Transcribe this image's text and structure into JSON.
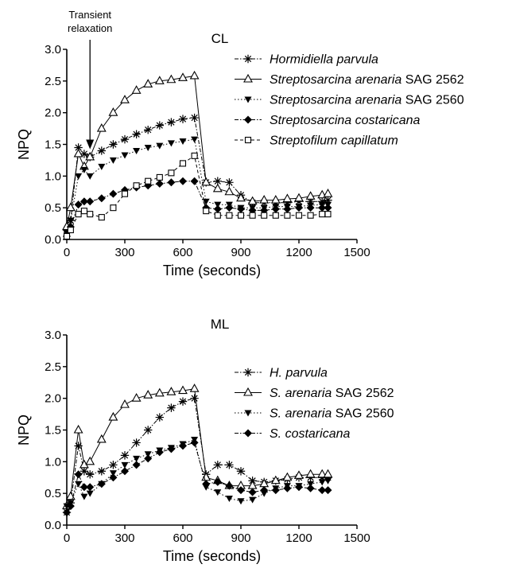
{
  "chart_data": [
    {
      "type": "line",
      "title": "CL",
      "xlabel": "Time (seconds)",
      "ylabel": "NPQ",
      "xlim": [
        0,
        1500
      ],
      "ylim": [
        0,
        3.0
      ],
      "xticks": [
        "0",
        "300",
        "600",
        "900",
        "1200",
        "1500"
      ],
      "yticks": [
        "0.0",
        "0.5",
        "1.0",
        "1.5",
        "2.0",
        "2.5",
        "3.0"
      ],
      "annotation": {
        "text": [
          "Transient",
          "relaxation"
        ],
        "arrow_x": 120,
        "arrow_y": 1.35
      },
      "legend": "right",
      "series": [
        {
          "name_italic": "Hormidiella parvula",
          "name_plain": "",
          "marker": "star",
          "line": "dash-dot",
          "x": [
            0,
            20,
            60,
            90,
            120,
            180,
            240,
            300,
            360,
            420,
            480,
            540,
            600,
            660,
            720,
            780,
            840,
            900,
            960,
            1020,
            1080,
            1140,
            1200,
            1260,
            1320,
            1350
          ],
          "y": [
            0.15,
            0.3,
            1.45,
            1.35,
            1.3,
            1.4,
            1.5,
            1.58,
            1.66,
            1.73,
            1.8,
            1.85,
            1.9,
            1.92,
            0.9,
            0.92,
            0.9,
            0.7,
            0.58,
            0.58,
            0.58,
            0.58,
            0.6,
            0.6,
            0.6,
            0.62
          ]
        },
        {
          "name_italic": "Streptosarcina arenaria",
          "name_plain": " SAG 2562",
          "marker": "triangle-open",
          "line": "solid",
          "x": [
            0,
            20,
            60,
            90,
            120,
            180,
            240,
            300,
            360,
            420,
            480,
            540,
            600,
            660,
            720,
            780,
            840,
            900,
            960,
            1020,
            1080,
            1140,
            1200,
            1260,
            1320,
            1350
          ],
          "y": [
            0.2,
            0.5,
            1.35,
            1.15,
            1.3,
            1.75,
            2.0,
            2.2,
            2.35,
            2.45,
            2.5,
            2.52,
            2.55,
            2.58,
            0.9,
            0.8,
            0.75,
            0.65,
            0.6,
            0.62,
            0.62,
            0.64,
            0.65,
            0.68,
            0.7,
            0.72
          ]
        },
        {
          "name_italic": "Streptosarcina arenaria",
          "name_plain": " SAG 2560",
          "marker": "triangle-down",
          "line": "dotted",
          "x": [
            0,
            20,
            60,
            90,
            120,
            180,
            240,
            300,
            360,
            420,
            480,
            540,
            600,
            660,
            720,
            780,
            840,
            900,
            960,
            1020,
            1080,
            1140,
            1200,
            1260,
            1320,
            1350
          ],
          "y": [
            0.1,
            0.3,
            1.0,
            1.1,
            1.0,
            1.15,
            1.25,
            1.33,
            1.4,
            1.45,
            1.48,
            1.52,
            1.55,
            1.58,
            0.6,
            0.55,
            0.55,
            0.5,
            0.5,
            0.5,
            0.52,
            0.52,
            0.52,
            0.54,
            0.55,
            0.55
          ]
        },
        {
          "name_italic": "Streptosarcina costaricana",
          "name_plain": "",
          "marker": "diamond",
          "line": "dash-dot",
          "x": [
            0,
            20,
            60,
            90,
            120,
            180,
            240,
            300,
            360,
            420,
            480,
            540,
            600,
            660,
            720,
            780,
            840,
            900,
            960,
            1020,
            1080,
            1140,
            1200,
            1260,
            1320,
            1350
          ],
          "y": [
            0.05,
            0.2,
            0.55,
            0.6,
            0.6,
            0.65,
            0.72,
            0.78,
            0.82,
            0.85,
            0.88,
            0.9,
            0.92,
            0.92,
            0.5,
            0.48,
            0.5,
            0.48,
            0.46,
            0.46,
            0.48,
            0.48,
            0.5,
            0.5,
            0.5,
            0.5
          ]
        },
        {
          "name_italic": "Streptofilum capillatum",
          "name_plain": "",
          "marker": "square-open",
          "line": "dashed",
          "x": [
            0,
            20,
            60,
            90,
            120,
            180,
            240,
            300,
            360,
            420,
            480,
            540,
            600,
            660,
            720,
            780,
            840,
            900,
            960,
            1020,
            1080,
            1140,
            1200,
            1260,
            1320,
            1350
          ],
          "y": [
            0.05,
            0.15,
            0.4,
            0.45,
            0.4,
            0.35,
            0.5,
            0.72,
            0.85,
            0.92,
            0.98,
            1.05,
            1.2,
            1.32,
            0.45,
            0.38,
            0.38,
            0.38,
            0.38,
            0.38,
            0.38,
            0.38,
            0.38,
            0.38,
            0.4,
            0.4
          ]
        }
      ]
    },
    {
      "type": "line",
      "title": "ML",
      "xlabel": "Time (seconds)",
      "ylabel": "NPQ",
      "xlim": [
        0,
        1500
      ],
      "ylim": [
        0,
        3.0
      ],
      "xticks": [
        "0",
        "300",
        "600",
        "900",
        "1200",
        "1500"
      ],
      "yticks": [
        "0.0",
        "0.5",
        "1.0",
        "1.5",
        "2.0",
        "2.5",
        "3.0"
      ],
      "legend": "right",
      "series": [
        {
          "name_italic": "H. parvula",
          "name_plain": "",
          "marker": "star",
          "line": "dash-dot",
          "x": [
            0,
            20,
            60,
            90,
            120,
            180,
            240,
            300,
            360,
            420,
            480,
            540,
            600,
            660,
            720,
            780,
            840,
            900,
            960,
            1020,
            1080,
            1140,
            1200,
            1260,
            1320,
            1350
          ],
          "y": [
            0.2,
            0.35,
            1.25,
            0.85,
            0.8,
            0.85,
            0.95,
            1.1,
            1.3,
            1.5,
            1.7,
            1.85,
            1.95,
            2.0,
            0.8,
            0.95,
            0.95,
            0.85,
            0.7,
            0.68,
            0.7,
            0.72,
            0.75,
            0.75,
            0.75,
            0.75
          ]
        },
        {
          "name_italic": "S. arenaria",
          "name_plain": " SAG 2562",
          "marker": "triangle-open",
          "line": "solid",
          "x": [
            0,
            20,
            60,
            90,
            120,
            180,
            240,
            300,
            360,
            420,
            480,
            540,
            600,
            660,
            720,
            780,
            840,
            900,
            960,
            1020,
            1080,
            1140,
            1200,
            1260,
            1320,
            1350
          ],
          "y": [
            0.3,
            0.45,
            1.5,
            0.95,
            1.0,
            1.35,
            1.7,
            1.9,
            2.0,
            2.05,
            2.08,
            2.1,
            2.12,
            2.15,
            0.75,
            0.7,
            0.62,
            0.62,
            0.62,
            0.65,
            0.7,
            0.75,
            0.78,
            0.8,
            0.8,
            0.8
          ]
        },
        {
          "name_italic": "S. arenaria",
          "name_plain": " SAG 2560",
          "marker": "triangle-down",
          "line": "dotted",
          "x": [
            0,
            20,
            60,
            90,
            120,
            180,
            240,
            300,
            360,
            420,
            480,
            540,
            600,
            660,
            720,
            780,
            840,
            900,
            960,
            1020,
            1080,
            1140,
            1200,
            1260,
            1320,
            1350
          ],
          "y": [
            0.3,
            0.35,
            0.65,
            0.45,
            0.5,
            0.65,
            0.82,
            0.95,
            1.05,
            1.12,
            1.18,
            1.22,
            1.28,
            1.35,
            0.6,
            0.52,
            0.42,
            0.38,
            0.4,
            0.5,
            0.58,
            0.62,
            0.62,
            0.65,
            0.68,
            0.7
          ]
        },
        {
          "name_italic": "S. costaricana",
          "name_plain": "",
          "marker": "diamond",
          "line": "dash-dot",
          "x": [
            0,
            20,
            60,
            90,
            120,
            180,
            240,
            300,
            360,
            420,
            480,
            540,
            600,
            660,
            720,
            780,
            840,
            900,
            960,
            1020,
            1080,
            1140,
            1200,
            1260,
            1320,
            1350
          ],
          "y": [
            0.2,
            0.3,
            0.8,
            0.6,
            0.6,
            0.65,
            0.75,
            0.85,
            0.95,
            1.05,
            1.15,
            1.2,
            1.25,
            1.3,
            0.65,
            0.68,
            0.62,
            0.55,
            0.52,
            0.55,
            0.55,
            0.58,
            0.6,
            0.58,
            0.55,
            0.55
          ]
        }
      ]
    }
  ]
}
